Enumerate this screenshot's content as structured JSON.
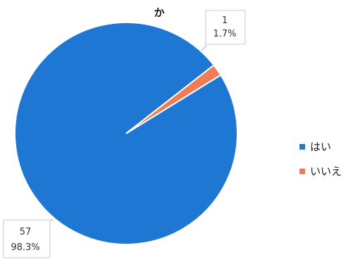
{
  "chart_data": {
    "type": "pie",
    "title": "か",
    "categories": [
      "はい",
      "いいえ"
    ],
    "values": [
      57,
      1
    ],
    "percent_labels": [
      "98.3%",
      "1.7%"
    ],
    "count_labels": [
      "57",
      "1"
    ],
    "colors": [
      "#1f77d4",
      "#ed7d57"
    ],
    "legend": [
      "はい",
      "いいえ"
    ],
    "legend_position": "right",
    "start_angle": "top, slices clockwise"
  }
}
